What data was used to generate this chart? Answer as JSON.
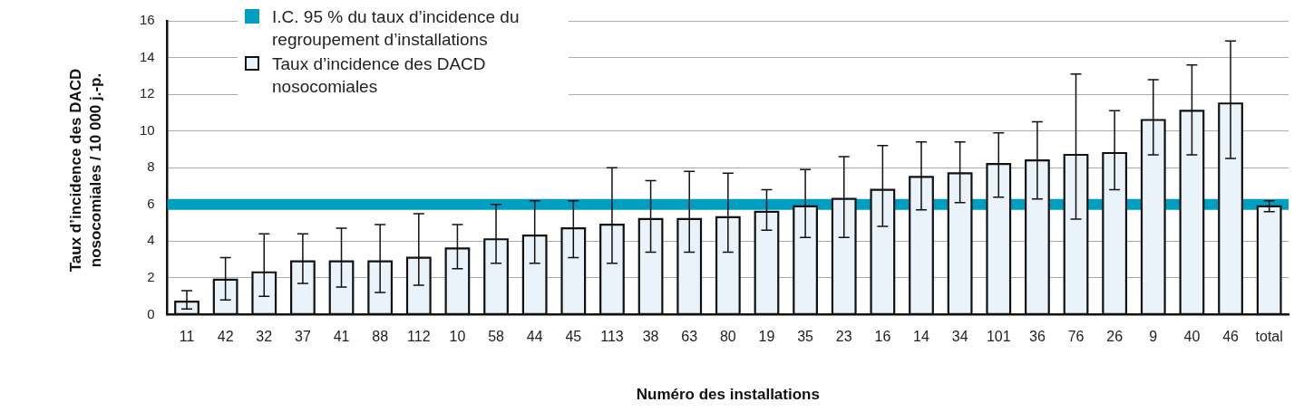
{
  "chart_data": {
    "type": "bar",
    "xlabel": "Numéro des installations",
    "ylabel": "Taux d’incidence des DACD nosocomiales / 10 000 j.-p.",
    "categories": [
      "11",
      "42",
      "32",
      "37",
      "41",
      "88",
      "112",
      "10",
      "58",
      "44",
      "45",
      "113",
      "38",
      "63",
      "80",
      "19",
      "35",
      "23",
      "16",
      "14",
      "34",
      "101",
      "36",
      "76",
      "26",
      "9",
      "40",
      "46",
      "total"
    ],
    "series": [
      {
        "name": "Taux d’incidence des DACD nosocomiales",
        "color": "#eaf3fa",
        "values": [
          0.7,
          1.9,
          2.3,
          2.9,
          2.9,
          2.9,
          3.1,
          3.6,
          4.1,
          4.3,
          4.7,
          4.9,
          5.2,
          5.2,
          5.3,
          5.6,
          5.9,
          6.3,
          6.8,
          7.5,
          7.7,
          8.2,
          8.4,
          8.7,
          8.8,
          10.6,
          11.1,
          11.5,
          5.9
        ],
        "errors": [
          [
            0.3,
            1.3
          ],
          [
            0.8,
            3.1
          ],
          [
            1.0,
            4.4
          ],
          [
            1.7,
            4.4
          ],
          [
            1.5,
            4.7
          ],
          [
            1.2,
            4.9
          ],
          [
            1.6,
            5.5
          ],
          [
            2.5,
            4.9
          ],
          [
            2.8,
            6.0
          ],
          [
            2.8,
            6.2
          ],
          [
            3.1,
            6.2
          ],
          [
            2.8,
            8.0
          ],
          [
            3.4,
            7.3
          ],
          [
            3.4,
            7.8
          ],
          [
            3.4,
            7.7
          ],
          [
            4.6,
            6.8
          ],
          [
            4.2,
            7.9
          ],
          [
            4.2,
            8.6
          ],
          [
            4.8,
            9.2
          ],
          [
            5.7,
            9.4
          ],
          [
            6.1,
            9.4
          ],
          [
            6.4,
            9.9
          ],
          [
            6.3,
            10.5
          ],
          [
            5.2,
            13.1
          ],
          [
            6.8,
            11.1
          ],
          [
            8.7,
            12.8
          ],
          [
            8.7,
            13.6
          ],
          [
            8.5,
            14.9
          ],
          [
            5.6,
            6.2
          ]
        ]
      }
    ],
    "bands": [
      {
        "axis": "y",
        "from": 5.7,
        "to": 6.3,
        "label": "I.C. 95 % du taux d’incidence du regroupement d’installations",
        "color": "#009fc2"
      }
    ],
    "ylim": [
      0,
      16
    ],
    "yticks": [
      0,
      2,
      4,
      6,
      8,
      10,
      12,
      14,
      16
    ],
    "grid": "y",
    "legend": "top left"
  }
}
